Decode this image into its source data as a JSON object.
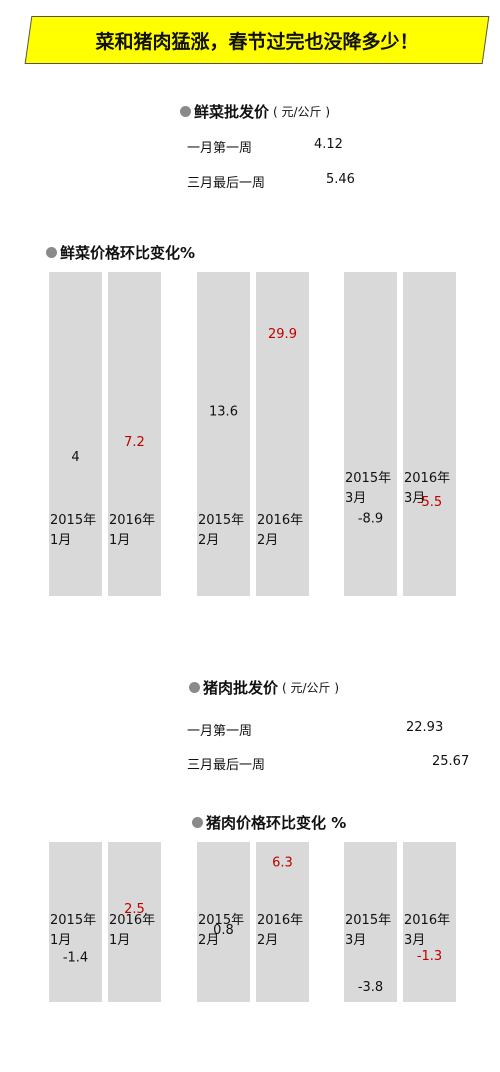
{
  "title": "菜和猪肉猛涨，春节过完也没降多少！",
  "veg_price": {
    "heading": "鲜菜批发价",
    "unit": "( 元/公斤 )",
    "rows": [
      {
        "label": "一月第一周",
        "value": "4.12"
      },
      {
        "label": "三月最后一周",
        "value": "5.46"
      }
    ]
  },
  "pork_price": {
    "heading": "猪肉批发价",
    "unit": "( 元/公斤 )",
    "rows": [
      {
        "label": "一月第一周",
        "value": "22.93"
      },
      {
        "label": "三月最后一周",
        "value": "25.67"
      }
    ]
  },
  "colors": {
    "bar": "#d9d9d9",
    "banner": "#ffff00",
    "value_2015": "#111111",
    "value_2016": "#c00000",
    "dot": "#8a8a8a"
  },
  "chart_data": [
    {
      "type": "bar",
      "title": "鲜菜价格环比变化%",
      "categories": [
        "2015年1月",
        "2016年1月",
        "2015年2月",
        "2016年2月",
        "2015年3月",
        "2016年3月"
      ],
      "values": [
        4,
        7.2,
        13.6,
        29.9,
        -8.9,
        -5.5
      ],
      "labels": [
        "4",
        "7.2",
        "13.6",
        "29.9",
        "-8.9",
        "-5.5"
      ],
      "ylim": [
        -10,
        30
      ],
      "grid": false
    },
    {
      "type": "bar",
      "title": "猪肉价格环比变化 %",
      "categories": [
        "2015年1月",
        "2016年1月",
        "2015年2月",
        "2016年2月",
        "2015年3月",
        "2016年3月"
      ],
      "values": [
        -1.4,
        2.5,
        0.8,
        6.3,
        -3.8,
        -1.3
      ],
      "labels": [
        "-1.4",
        "2.5",
        "0.8",
        "6.3",
        "-3.8",
        "-1.3"
      ],
      "ylim": [
        -6,
        9
      ],
      "grid": false
    }
  ]
}
